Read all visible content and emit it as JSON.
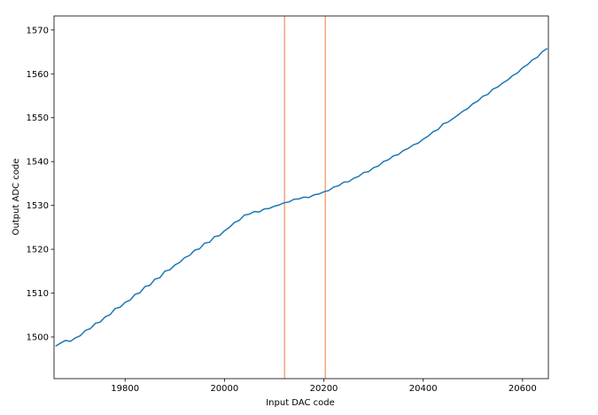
{
  "chart_data": {
    "type": "line",
    "x_label": "Input DAC code",
    "y_label": "Output ADC code",
    "x": [
      19660,
      19670,
      19680,
      19690,
      19700,
      19710,
      19720,
      19730,
      19740,
      19750,
      19760,
      19770,
      19780,
      19790,
      19800,
      19810,
      19820,
      19830,
      19840,
      19850,
      19860,
      19870,
      19880,
      19890,
      19900,
      19910,
      19920,
      19930,
      19940,
      19950,
      19960,
      19970,
      19980,
      19990,
      20000,
      20010,
      20020,
      20030,
      20040,
      20050,
      20060,
      20070,
      20080,
      20090,
      20100,
      20110,
      20120,
      20130,
      20140,
      20150,
      20160,
      20170,
      20180,
      20190,
      20200,
      20210,
      20220,
      20230,
      20240,
      20250,
      20260,
      20270,
      20280,
      20290,
      20300,
      20310,
      20320,
      20330,
      20340,
      20350,
      20360,
      20370,
      20380,
      20390,
      20400,
      20410,
      20420,
      20430,
      20440,
      20450,
      20460,
      20470,
      20480,
      20490,
      20500,
      20510,
      20520,
      20530,
      20540,
      20550,
      20560,
      20570,
      20580,
      20590,
      20600,
      20610,
      20620,
      20630,
      20640,
      20650
    ],
    "values": [
      1497.9,
      1498.6,
      1499.2,
      1499.0,
      1499.8,
      1500.3,
      1501.5,
      1501.9,
      1503.1,
      1503.4,
      1504.6,
      1505.1,
      1506.5,
      1506.8,
      1507.9,
      1508.4,
      1509.7,
      1510.1,
      1511.5,
      1511.8,
      1513.2,
      1513.5,
      1515.0,
      1515.3,
      1516.4,
      1517.0,
      1518.1,
      1518.6,
      1519.8,
      1520.1,
      1521.4,
      1521.6,
      1522.9,
      1523.1,
      1524.2,
      1525.0,
      1526.1,
      1526.6,
      1527.8,
      1528.0,
      1528.6,
      1528.5,
      1529.2,
      1529.3,
      1529.8,
      1530.1,
      1530.6,
      1530.8,
      1531.4,
      1531.5,
      1531.9,
      1531.8,
      1532.4,
      1532.6,
      1533.1,
      1533.4,
      1534.2,
      1534.5,
      1535.3,
      1535.4,
      1536.2,
      1536.6,
      1537.5,
      1537.7,
      1538.6,
      1539.0,
      1540.0,
      1540.4,
      1541.3,
      1541.6,
      1542.5,
      1543.0,
      1543.8,
      1544.2,
      1545.1,
      1545.8,
      1546.8,
      1547.3,
      1548.6,
      1549.0,
      1549.8,
      1550.6,
      1551.5,
      1552.1,
      1553.2,
      1553.8,
      1554.9,
      1555.3,
      1556.5,
      1557.0,
      1557.9,
      1558.6,
      1559.6,
      1560.2,
      1561.4,
      1562.1,
      1563.2,
      1563.8,
      1565.1,
      1565.8
    ],
    "color": "#1f77b4",
    "vlines": [
      20121,
      20203
    ],
    "vline_color": "#f5a57a",
    "xlim": [
      19657,
      20652
    ],
    "ylim": [
      1490.5,
      1573.2
    ],
    "xticks": [
      19800,
      20000,
      20200,
      20400,
      20600
    ],
    "yticks": [
      1500,
      1510,
      1520,
      1530,
      1540,
      1550,
      1560,
      1570
    ]
  }
}
